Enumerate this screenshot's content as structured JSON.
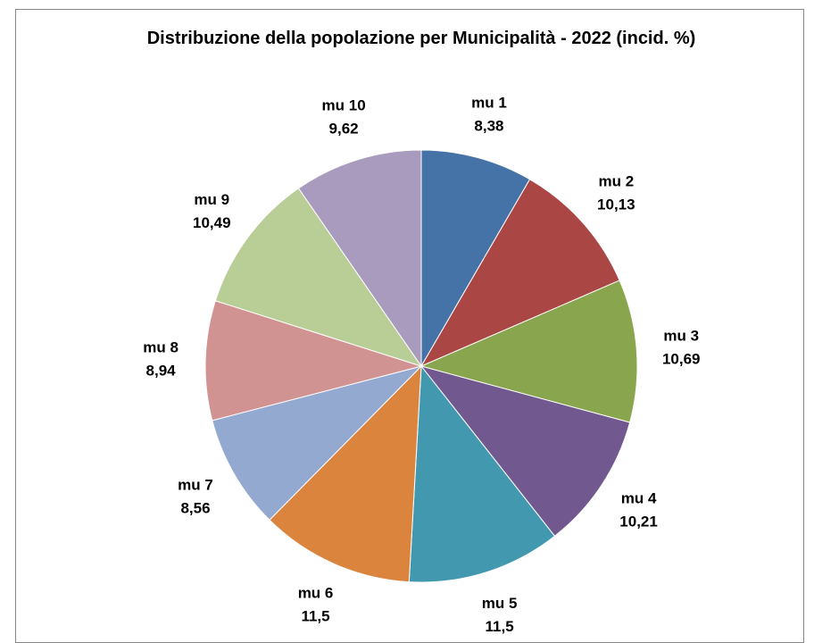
{
  "chart_data": {
    "type": "pie",
    "title": "Distribuzione della popolazione per Municipalità - 2022 (incid. %)",
    "categories": [
      "mu 1",
      "mu 2",
      "mu 3",
      "mu 4",
      "mu 5",
      "mu 6",
      "mu 7",
      "mu 8",
      "mu 9",
      "mu 10"
    ],
    "values": [
      8.38,
      10.13,
      10.69,
      10.21,
      11.5,
      11.5,
      8.56,
      8.94,
      10.49,
      9.62
    ],
    "value_labels": [
      "8,38",
      "10,13",
      "10,69",
      "10,21",
      "11,5",
      "11,5",
      "8,56",
      "8,94",
      "10,49",
      "9,62"
    ],
    "colors": [
      "#4572A7",
      "#AA4643",
      "#89A54E",
      "#71588F",
      "#4198AF",
      "#DB843D",
      "#93A9CF",
      "#D19392",
      "#B9CD96",
      "#A99BBD"
    ]
  }
}
